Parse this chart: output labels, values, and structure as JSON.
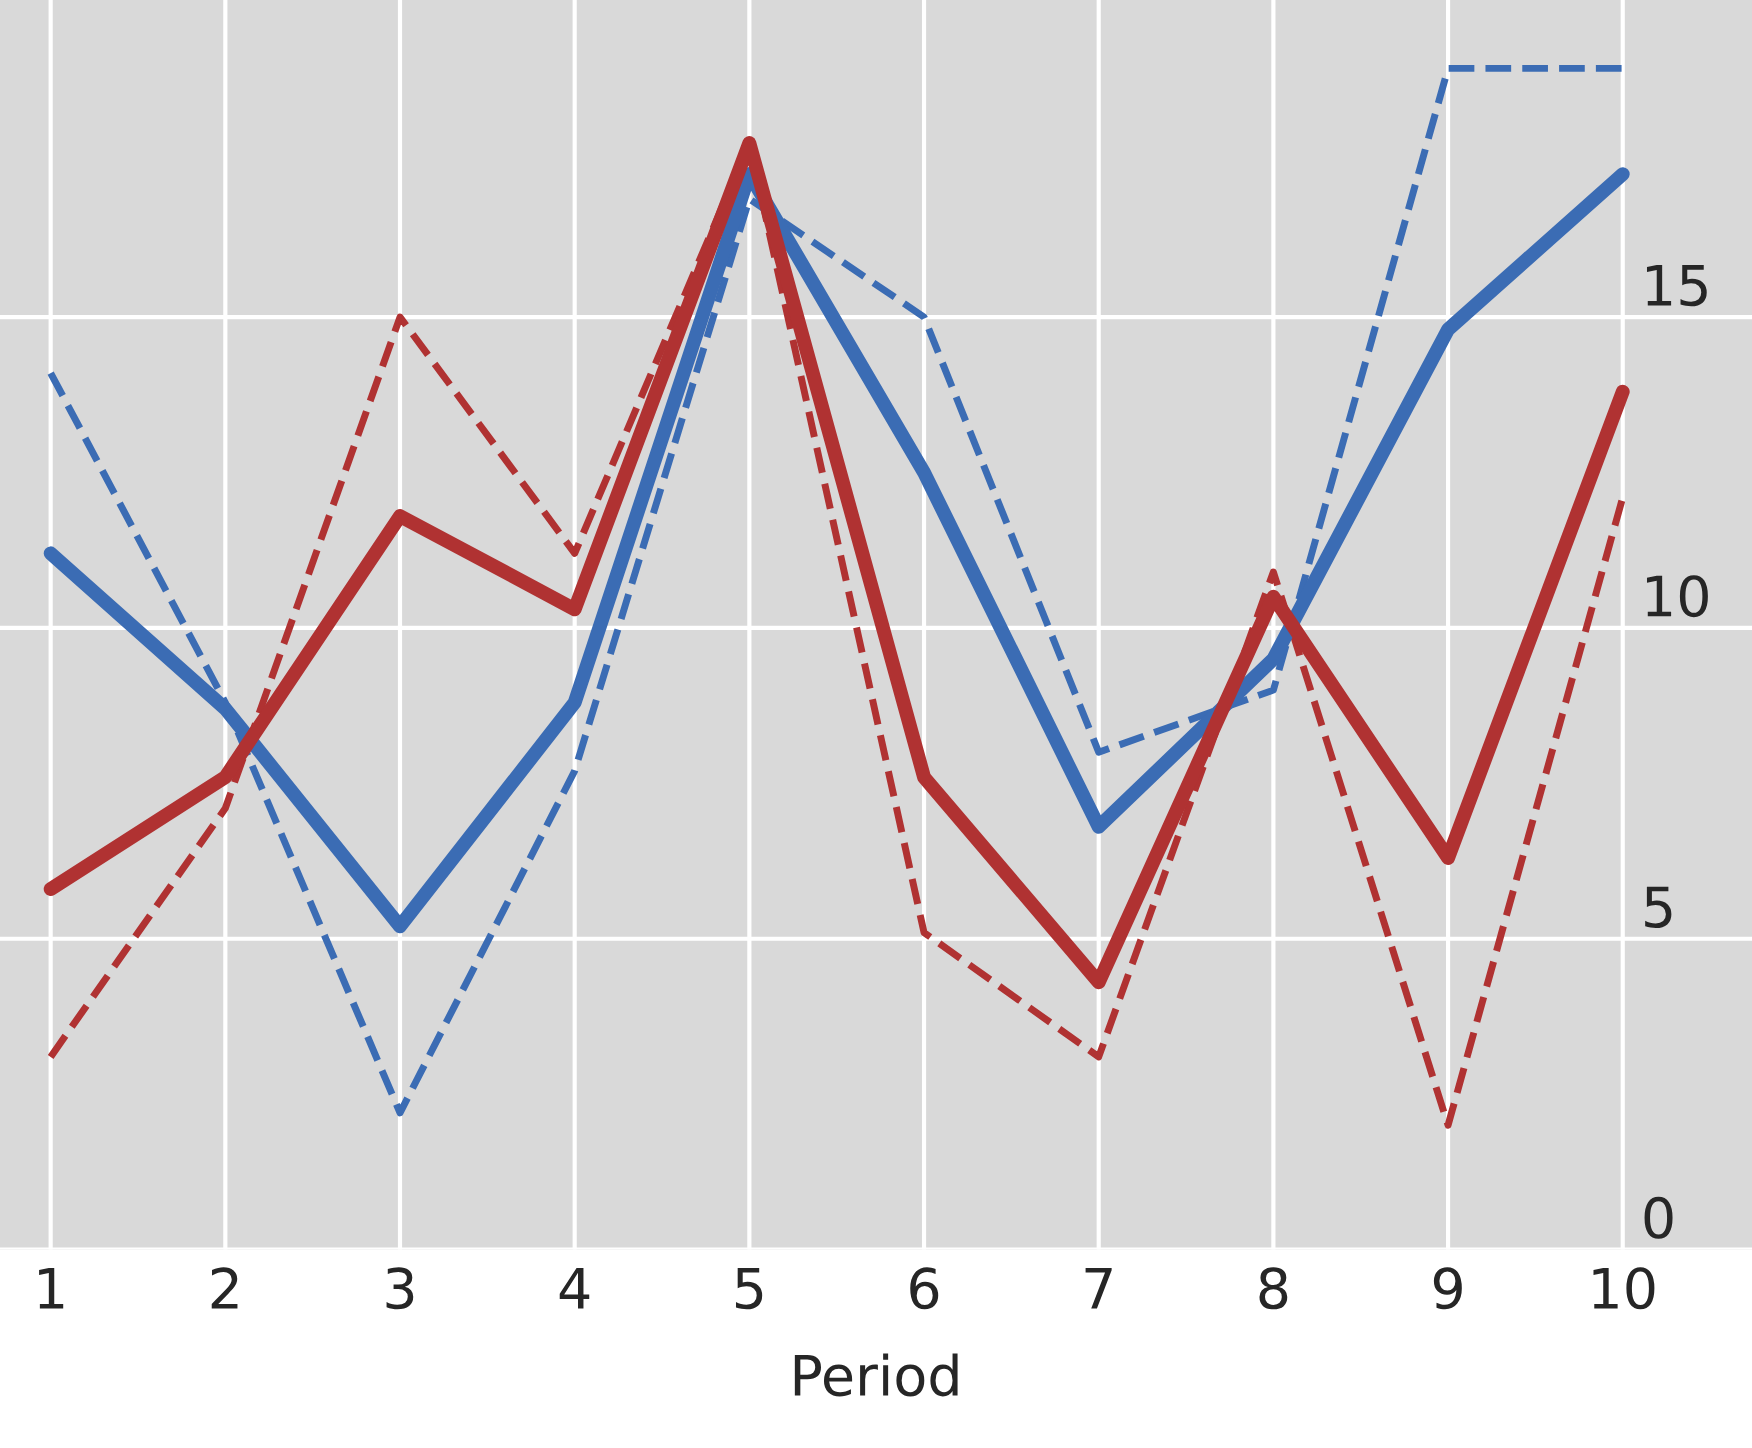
{
  "chart_data": {
    "type": "line",
    "xlabel": "Period",
    "x": [
      1,
      2,
      3,
      4,
      5,
      6,
      7,
      8,
      9,
      10
    ],
    "xlim": [
      0.71,
      10.74
    ],
    "xticks": [
      1,
      2,
      3,
      4,
      5,
      6,
      7,
      8,
      9,
      10
    ],
    "ylim": [
      0,
      20.1
    ],
    "yticks": [
      0,
      5,
      10,
      15
    ],
    "grid": true,
    "legend": false,
    "marker": "none",
    "series": [
      {
        "color": "#3b6cb4",
        "line_style": "dashed",
        "values": [
          14.1,
          8.8,
          2.2,
          7.7,
          16.9,
          15.0,
          8.0,
          9.0,
          19.0,
          19.0
        ]
      },
      {
        "color": "#b03232",
        "line_style": "dashed",
        "values": [
          3.1,
          7.1,
          15.0,
          11.2,
          17.8,
          5.1,
          3.1,
          10.9,
          2.0,
          12.1
        ]
      },
      {
        "color": "#3b6cb4",
        "line_style": "solid",
        "values": [
          11.2,
          8.7,
          5.2,
          8.8,
          17.3,
          12.5,
          6.8,
          9.5,
          14.8,
          17.3
        ]
      },
      {
        "color": "#b03232",
        "line_style": "solid",
        "values": [
          5.8,
          7.6,
          11.8,
          10.3,
          17.8,
          7.6,
          4.3,
          10.5,
          6.3,
          13.8
        ]
      }
    ]
  }
}
